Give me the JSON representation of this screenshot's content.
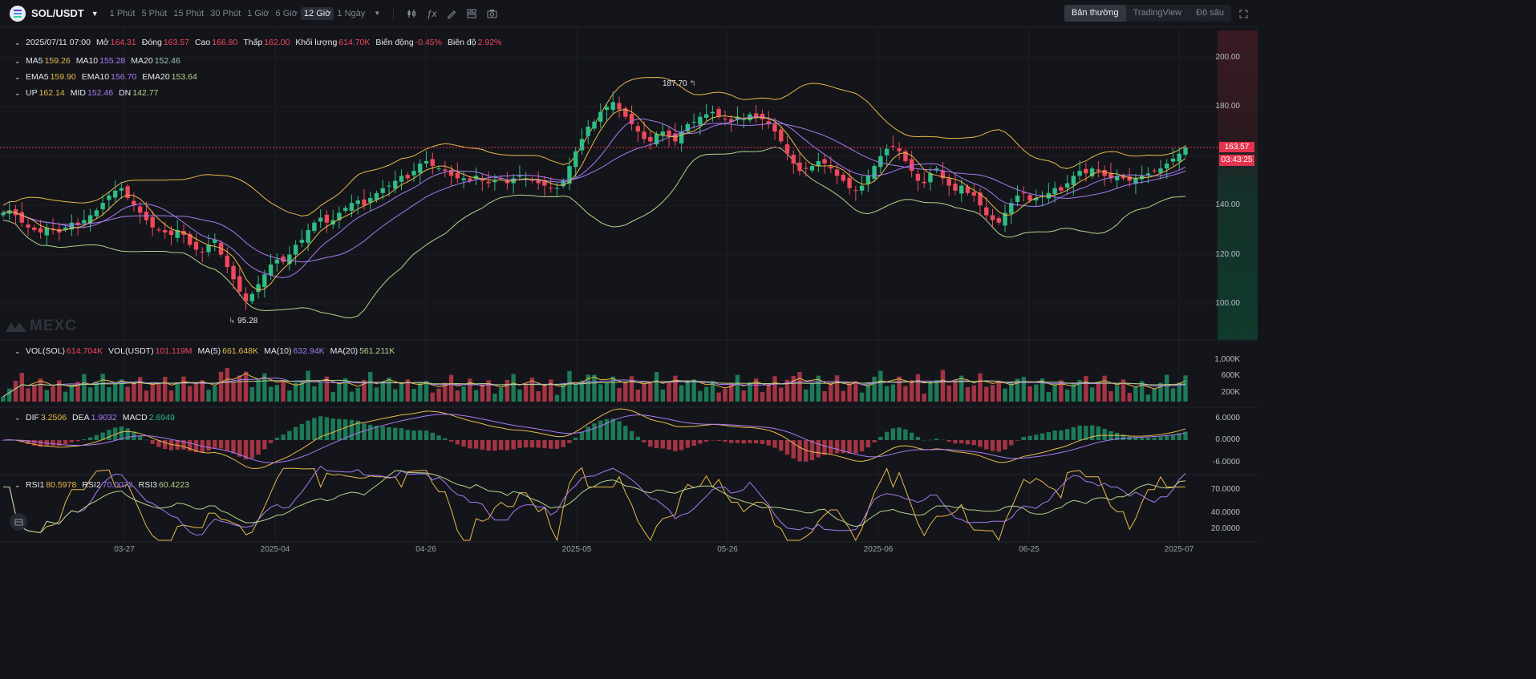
{
  "header": {
    "symbol": "SOL/USDT",
    "intervals": [
      "1 Phút",
      "5 Phút",
      "15 Phút",
      "30 Phút",
      "1 Giờ",
      "6 Giờ",
      "12 Giờ",
      "1 Ngày"
    ],
    "active_interval": "12 Giờ",
    "views": [
      "Bản thường",
      "TradingView",
      "Độ sâu"
    ],
    "active_view": "Bản thường",
    "tool_icons": [
      "candle-type-icon",
      "indicator-fx-icon",
      "draw-pencil-icon",
      "layout-grid-icon",
      "camera-icon"
    ]
  },
  "ohlc": {
    "date": "2025/07/11 07:00",
    "open_label": "Mở",
    "open": "164.31",
    "close_label": "Đóng",
    "close": "163.57",
    "high_label": "Cao",
    "high": "166.80",
    "low_label": "Thấp",
    "low": "162.00",
    "vol_label": "Khối lượng",
    "vol": "614.70K",
    "change_label": "Biến động",
    "change": "-0.45%",
    "amp_label": "Biên độ",
    "amp": "2.92%"
  },
  "ma": {
    "ma5_label": "MA5",
    "ma5": "159.26",
    "ma10_label": "MA10",
    "ma10": "155.28",
    "ma20_label": "MA20",
    "ma20": "152.46"
  },
  "ema": {
    "ema5_label": "EMA5",
    "ema5": "159.90",
    "ema10_label": "EMA10",
    "ema10": "156.70",
    "ema20_label": "EMA20",
    "ema20": "153.64"
  },
  "boll": {
    "up_label": "UP",
    "up": "162.14",
    "mid_label": "MID",
    "mid": "152.46",
    "dn_label": "DN",
    "dn": "142.77"
  },
  "price_axis": [
    "200.00",
    "180.00",
    "160.00",
    "140.00",
    "120.00",
    "100.00"
  ],
  "current_price": "163.57",
  "countdown": "03:43:25",
  "high_marker": "187.70",
  "low_marker": "95.28",
  "watermark": "MEXC",
  "volume": {
    "vol_sol_label": "VOL(SOL)",
    "vol_sol": "614.704K",
    "vol_usdt_label": "VOL(USDT)",
    "vol_usdt": "101.119M",
    "ma5_label": "MA(5)",
    "ma5": "661.648K",
    "ma10_label": "MA(10)",
    "ma10": "632.94K",
    "ma20_label": "MA(20)",
    "ma20": "561.211K",
    "axis": [
      "1,000K",
      "600K",
      "200K"
    ]
  },
  "macd": {
    "dif_label": "DIF",
    "dif": "3.2506",
    "dea_label": "DEA",
    "dea": "1.9032",
    "macd_label": "MACD",
    "macd": "2.6949",
    "axis": [
      "6.0000",
      "0.0000",
      "-6.0000"
    ]
  },
  "rsi": {
    "rsi1_label": "RSI1",
    "rsi1": "80.5978",
    "rsi2_label": "RSI2",
    "rsi2": "70.0072",
    "rsi3_label": "RSI3",
    "rsi3": "60.4223",
    "axis": [
      "70.0000",
      "40.0000",
      "20.0000"
    ]
  },
  "x_axis": [
    "03-27",
    "2025-04",
    "04-26",
    "2025-05",
    "05-26",
    "2025-06",
    "06-25",
    "2025-07"
  ],
  "colors": {
    "up": "#2ebd85",
    "down": "#f0485b",
    "ma5": "#e8b94a",
    "ma10": "#a77bf3",
    "ma20": "#9ac6b8",
    "boll_up": "#e8b94a",
    "boll_mid": "#a77bf3",
    "boll_dn": "#b5d38a"
  },
  "chart_data": {
    "type": "candlestick",
    "close_series_12h": [
      137,
      138,
      136,
      133,
      131,
      130,
      129,
      131,
      130,
      129,
      131,
      133,
      132,
      134,
      136,
      138,
      141,
      144,
      146,
      147,
      143,
      140,
      137,
      134,
      131,
      130,
      129,
      128,
      130,
      128,
      124,
      122,
      121,
      124,
      126,
      120,
      115,
      110,
      105,
      101,
      104,
      108,
      112,
      116,
      118,
      117,
      120,
      124,
      126,
      130,
      133,
      135,
      133,
      134,
      137,
      139,
      141,
      142,
      140,
      143,
      145,
      147,
      148,
      150,
      152,
      151,
      154,
      157,
      158,
      156,
      155,
      154,
      152,
      151,
      151,
      150,
      152,
      150,
      149,
      150,
      151,
      149,
      151,
      152,
      151,
      150,
      149,
      148,
      147,
      147,
      150,
      156,
      162,
      167,
      172,
      174,
      178,
      180,
      182,
      179,
      176,
      173,
      170,
      167,
      166,
      169,
      170,
      168,
      166,
      170,
      173,
      174,
      176,
      177,
      178,
      176,
      175,
      174,
      176,
      175,
      177,
      176,
      175,
      173,
      170,
      166,
      161,
      157,
      154,
      155,
      156,
      158,
      157,
      155,
      152,
      150,
      147,
      146,
      148,
      152,
      156,
      160,
      163,
      164,
      162,
      158,
      154,
      150,
      149,
      153,
      155,
      151,
      148,
      146,
      148,
      145,
      144,
      140,
      136,
      134,
      133,
      137,
      141,
      144,
      145,
      142,
      143,
      144,
      145,
      147,
      146,
      149,
      152,
      154,
      153,
      155,
      154,
      152,
      151,
      152,
      151,
      150,
      151,
      152,
      153,
      154,
      155,
      157,
      159,
      161,
      163.57
    ]
  }
}
